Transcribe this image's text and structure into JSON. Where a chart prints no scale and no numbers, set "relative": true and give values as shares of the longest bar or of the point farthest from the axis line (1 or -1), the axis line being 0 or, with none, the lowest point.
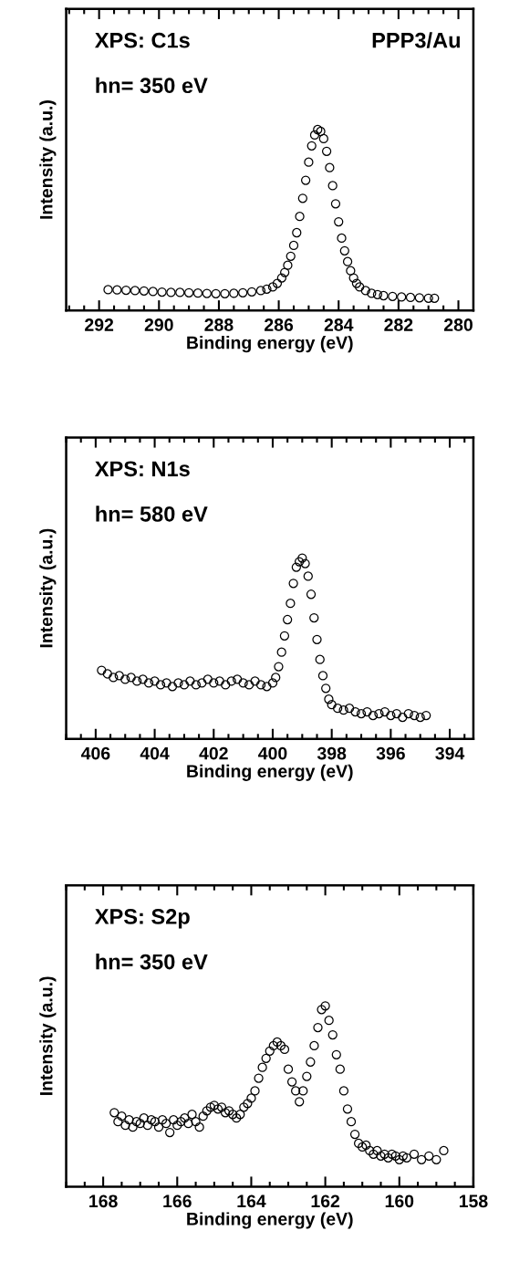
{
  "chart_data": [
    {
      "type": "scatter",
      "relative": true,
      "marker": "circle",
      "xlabel": "Binding energy (eV)",
      "ylabel": "Intensity (a.u.)",
      "annotations": [
        "XPS: C1s",
        "hn= 350 eV",
        "PPP3/Au"
      ],
      "xlim": [
        293.1,
        279.5
      ],
      "xticks": [
        {
          "value": 293,
          "label": null
        },
        {
          "value": 292.5,
          "label": null
        },
        292,
        {
          "value": 291.5,
          "label": null
        },
        {
          "value": 291,
          "label": null
        },
        {
          "value": 290.5,
          "label": null
        },
        290,
        {
          "value": 289.5,
          "label": null
        },
        {
          "value": 289,
          "label": null
        },
        {
          "value": 288.5,
          "label": null
        },
        288,
        {
          "value": 287.5,
          "label": null
        },
        {
          "value": 287,
          "label": null
        },
        {
          "value": 286.5,
          "label": null
        },
        286,
        {
          "value": 285.5,
          "label": null
        },
        {
          "value": 285,
          "label": null
        },
        {
          "value": 284.5,
          "label": null
        },
        284,
        {
          "value": 283.5,
          "label": null
        },
        {
          "value": 283,
          "label": null
        },
        {
          "value": 282.5,
          "label": null
        },
        282,
        {
          "value": 281.5,
          "label": null
        },
        {
          "value": 281,
          "label": null
        },
        {
          "value": 280.5,
          "label": null
        },
        280
      ],
      "series": [
        {
          "color": "#000000",
          "x": [
            291.7,
            291.4,
            291.1,
            290.8,
            290.5,
            290.2,
            289.9,
            289.6,
            289.3,
            289.0,
            288.7,
            288.4,
            288.1,
            287.8,
            287.5,
            287.2,
            286.9,
            286.6,
            286.4,
            286.2,
            286.05,
            285.9,
            285.8,
            285.7,
            285.6,
            285.5,
            285.4,
            285.3,
            285.2,
            285.1,
            285.0,
            284.9,
            284.8,
            284.7,
            284.6,
            284.5,
            284.4,
            284.3,
            284.2,
            284.1,
            284.0,
            283.9,
            283.8,
            283.7,
            283.6,
            283.5,
            283.4,
            283.3,
            283.1,
            282.9,
            282.7,
            282.5,
            282.2,
            281.9,
            281.6,
            281.3,
            281.0,
            280.8
          ],
          "values": [
            0.115,
            0.114,
            0.112,
            0.11,
            0.108,
            0.105,
            0.102,
            0.1,
            0.1,
            0.098,
            0.096,
            0.094,
            0.093,
            0.093,
            0.095,
            0.098,
            0.103,
            0.11,
            0.118,
            0.13,
            0.15,
            0.18,
            0.21,
            0.25,
            0.3,
            0.36,
            0.43,
            0.52,
            0.62,
            0.72,
            0.82,
            0.91,
            0.97,
            1.0,
            0.99,
            0.95,
            0.88,
            0.79,
            0.69,
            0.59,
            0.49,
            0.4,
            0.33,
            0.27,
            0.22,
            0.18,
            0.15,
            0.13,
            0.11,
            0.095,
            0.088,
            0.082,
            0.078,
            0.075,
            0.072,
            0.07,
            0.068,
            0.068
          ]
        }
      ]
    },
    {
      "type": "scatter",
      "relative": true,
      "marker": "circle",
      "xlabel": "Binding energy (eV)",
      "ylabel": "Intensity (a.u.)",
      "annotations": [
        "XPS: N1s",
        "hn= 580 eV"
      ],
      "xlim": [
        407.0,
        393.2
      ],
      "xticks": [
        {
          "value": 407,
          "label": null
        },
        {
          "value": 406.5,
          "label": null
        },
        406,
        {
          "value": 405.5,
          "label": null
        },
        {
          "value": 405,
          "label": null
        },
        {
          "value": 404.5,
          "label": null
        },
        404,
        {
          "value": 403.5,
          "label": null
        },
        {
          "value": 403,
          "label": null
        },
        {
          "value": 402.5,
          "label": null
        },
        402,
        {
          "value": 401.5,
          "label": null
        },
        {
          "value": 401,
          "label": null
        },
        {
          "value": 400.5,
          "label": null
        },
        400,
        {
          "value": 399.5,
          "label": null
        },
        {
          "value": 399,
          "label": null
        },
        {
          "value": 398.5,
          "label": null
        },
        398,
        {
          "value": 397.5,
          "label": null
        },
        {
          "value": 397,
          "label": null
        },
        {
          "value": 396.5,
          "label": null
        },
        396,
        {
          "value": 395.5,
          "label": null
        },
        {
          "value": 395,
          "label": null
        },
        {
          "value": 394.5,
          "label": null
        },
        394,
        {
          "value": 393.5,
          "label": null
        }
      ],
      "series": [
        {
          "color": "#000000",
          "x": [
            405.8,
            405.6,
            405.4,
            405.2,
            405.0,
            404.8,
            404.6,
            404.4,
            404.2,
            404.0,
            403.8,
            403.6,
            403.4,
            403.2,
            403.0,
            402.8,
            402.6,
            402.4,
            402.2,
            402.0,
            401.8,
            401.6,
            401.4,
            401.2,
            401.0,
            400.8,
            400.6,
            400.4,
            400.2,
            400.0,
            399.9,
            399.8,
            399.7,
            399.6,
            399.5,
            399.4,
            399.3,
            399.2,
            399.1,
            399.0,
            398.9,
            398.8,
            398.7,
            398.6,
            398.5,
            398.4,
            398.3,
            398.2,
            398.1,
            398.0,
            397.8,
            397.6,
            397.4,
            397.2,
            397.0,
            396.8,
            396.6,
            396.4,
            396.2,
            396.0,
            395.8,
            395.6,
            395.4,
            395.2,
            395.0,
            394.8
          ],
          "values": [
            0.38,
            0.36,
            0.34,
            0.35,
            0.33,
            0.34,
            0.32,
            0.33,
            0.31,
            0.32,
            0.3,
            0.31,
            0.29,
            0.31,
            0.3,
            0.32,
            0.3,
            0.31,
            0.33,
            0.31,
            0.32,
            0.3,
            0.32,
            0.33,
            0.31,
            0.3,
            0.32,
            0.3,
            0.29,
            0.31,
            0.34,
            0.4,
            0.48,
            0.57,
            0.66,
            0.75,
            0.86,
            0.95,
            0.98,
            1.0,
            0.97,
            0.9,
            0.8,
            0.67,
            0.55,
            0.44,
            0.35,
            0.28,
            0.22,
            0.19,
            0.17,
            0.16,
            0.17,
            0.15,
            0.14,
            0.15,
            0.13,
            0.14,
            0.15,
            0.13,
            0.14,
            0.12,
            0.14,
            0.13,
            0.12,
            0.13
          ]
        }
      ]
    },
    {
      "type": "scatter",
      "relative": true,
      "marker": "circle",
      "xlabel": "Binding energy (eV)",
      "ylabel": "Intensity (a.u.)",
      "annotations": [
        "XPS: S2p",
        "hn= 350 eV"
      ],
      "xlim": [
        169.0,
        158.0
      ],
      "xticks": [
        {
          "value": 169,
          "label": null
        },
        {
          "value": 168.5,
          "label": null
        },
        168,
        {
          "value": 167.5,
          "label": null
        },
        {
          "value": 167,
          "label": null
        },
        {
          "value": 166.5,
          "label": null
        },
        166,
        {
          "value": 165.5,
          "label": null
        },
        {
          "value": 165,
          "label": null
        },
        {
          "value": 164.5,
          "label": null
        },
        164,
        {
          "value": 163.5,
          "label": null
        },
        {
          "value": 163,
          "label": null
        },
        {
          "value": 162.5,
          "label": null
        },
        162,
        {
          "value": 161.5,
          "label": null
        },
        {
          "value": 161,
          "label": null
        },
        {
          "value": 160.5,
          "label": null
        },
        160,
        {
          "value": 159.5,
          "label": null
        },
        {
          "value": 159,
          "label": null
        },
        {
          "value": 158.5,
          "label": null
        },
        158
      ],
      "series": [
        {
          "color": "#000000",
          "x": [
            167.7,
            167.6,
            167.5,
            167.4,
            167.3,
            167.2,
            167.1,
            167.0,
            166.9,
            166.8,
            166.7,
            166.6,
            166.5,
            166.4,
            166.3,
            166.2,
            166.1,
            166.0,
            165.9,
            165.8,
            165.7,
            165.6,
            165.5,
            165.4,
            165.3,
            165.2,
            165.1,
            165.0,
            164.9,
            164.8,
            164.7,
            164.6,
            164.5,
            164.4,
            164.3,
            164.2,
            164.1,
            164.0,
            163.9,
            163.8,
            163.7,
            163.6,
            163.5,
            163.4,
            163.3,
            163.2,
            163.1,
            163.0,
            162.9,
            162.8,
            162.7,
            162.6,
            162.5,
            162.4,
            162.3,
            162.2,
            162.1,
            162.0,
            161.9,
            161.8,
            161.7,
            161.6,
            161.5,
            161.4,
            161.3,
            161.2,
            161.1,
            161.0,
            160.9,
            160.8,
            160.7,
            160.6,
            160.5,
            160.4,
            160.3,
            160.2,
            160.1,
            160.0,
            159.9,
            159.8,
            159.6,
            159.4,
            159.2,
            159.0,
            158.8
          ],
          "values": [
            0.41,
            0.36,
            0.39,
            0.34,
            0.37,
            0.33,
            0.36,
            0.35,
            0.38,
            0.34,
            0.37,
            0.36,
            0.33,
            0.37,
            0.35,
            0.3,
            0.37,
            0.34,
            0.36,
            0.38,
            0.35,
            0.4,
            0.36,
            0.33,
            0.39,
            0.42,
            0.44,
            0.45,
            0.43,
            0.44,
            0.41,
            0.42,
            0.4,
            0.38,
            0.4,
            0.44,
            0.46,
            0.49,
            0.53,
            0.6,
            0.66,
            0.71,
            0.75,
            0.78,
            0.8,
            0.78,
            0.76,
            0.65,
            0.58,
            0.53,
            0.47,
            0.53,
            0.61,
            0.69,
            0.78,
            0.88,
            0.98,
            1.0,
            0.92,
            0.84,
            0.73,
            0.65,
            0.53,
            0.43,
            0.36,
            0.29,
            0.24,
            0.22,
            0.23,
            0.2,
            0.18,
            0.2,
            0.17,
            0.18,
            0.16,
            0.18,
            0.17,
            0.15,
            0.17,
            0.16,
            0.18,
            0.15,
            0.17,
            0.15,
            0.2
          ]
        }
      ]
    }
  ]
}
